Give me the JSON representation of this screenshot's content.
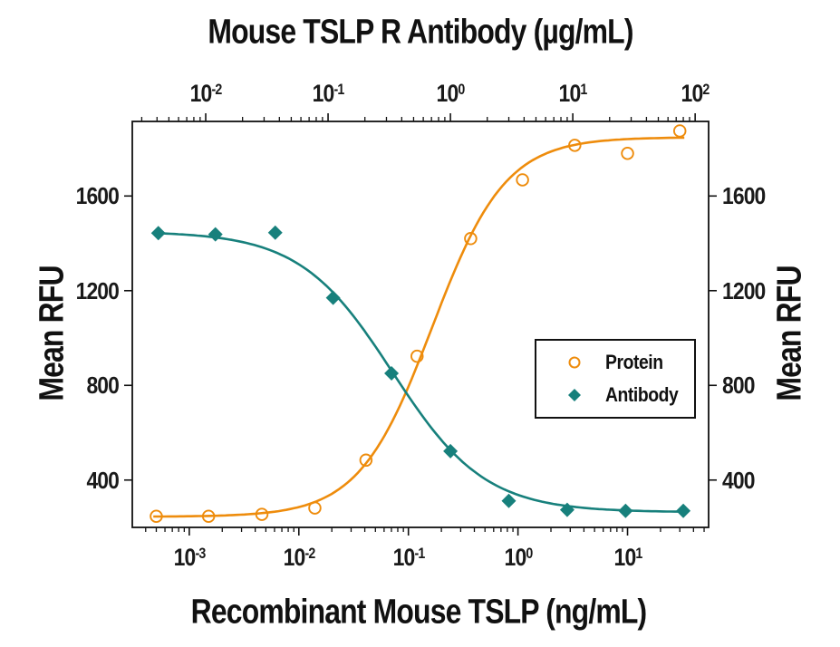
{
  "figure": {
    "title_top": "Mouse TSLP R Antibody (µg/mL)",
    "xlabel_bottom": "Recombinant Mouse TSLP (ng/mL)",
    "ylabel_left": "Mean RFU",
    "ylabel_right": "Mean RFU"
  },
  "colors": {
    "protein": "#EE8C0C",
    "antibody": "#17807C",
    "axis": "#111111",
    "background": "#ffffff"
  },
  "legend": {
    "items": [
      {
        "label": "Protein",
        "marker": "open-circle",
        "color": "#EE8C0C"
      },
      {
        "label": "Antibody",
        "marker": "filled-diamond",
        "color": "#17807C"
      }
    ]
  },
  "chart_data": {
    "type": "scatter",
    "subtype": "dose-response-curves",
    "title": "Mouse TSLP R Antibody (µg/mL)",
    "grid": false,
    "legend_position": "middle-right",
    "y_axis": {
      "label": "Mean RFU",
      "ticks": [
        400,
        800,
        1200,
        1600
      ],
      "range": [
        200,
        1915
      ],
      "mirrored_right": true
    },
    "x_axis_bottom": {
      "label": "Recombinant Mouse TSLP (ng/mL)",
      "scale": "log",
      "tick_exponents": [
        -3,
        -2,
        -1,
        0,
        1
      ],
      "domain_log10": [
        -3.52,
        1.74
      ]
    },
    "x_axis_top": {
      "label": "Mouse TSLP R Antibody (µg/mL)",
      "scale": "log",
      "tick_exponents": [
        -2,
        -1,
        0,
        1,
        2
      ],
      "domain_log10": [
        -2.6,
        2.11
      ]
    },
    "series": [
      {
        "name": "Protein",
        "axis": "bottom",
        "units": "ng/mL",
        "marker": "open-circle",
        "color": "#EE8C0C",
        "x": [
          0.0005,
          0.0015,
          0.0046,
          0.014,
          0.041,
          0.12,
          0.37,
          1.1,
          3.3,
          10,
          30
        ],
        "y": [
          247,
          247,
          255,
          282,
          484,
          923,
          1420,
          1668,
          1814,
          1780,
          1875
        ],
        "fit": {
          "min": 245,
          "max": 1848,
          "mid": 0.165,
          "hill": 1.3,
          "draw_range": [
            0.00047,
            33
          ]
        }
      },
      {
        "name": "Antibody",
        "axis": "top",
        "units": "µg/mL",
        "marker": "filled-diamond",
        "color": "#17807C",
        "x": [
          0.0041,
          0.012,
          0.037,
          0.11,
          0.33,
          1,
          3,
          9,
          27,
          80
        ],
        "y": [
          1443,
          1438,
          1445,
          1170,
          851,
          522,
          312,
          274,
          270,
          270
        ],
        "fit": {
          "min": 264,
          "max": 1450,
          "mid": 0.335,
          "hill": -1.15,
          "draw_range": [
            0.0039,
            84
          ]
        }
      }
    ]
  }
}
